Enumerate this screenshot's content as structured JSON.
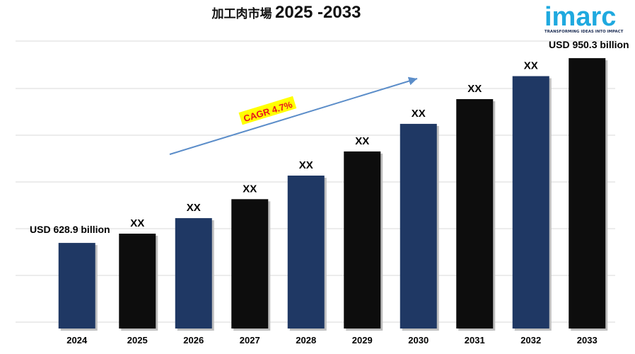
{
  "header": {
    "title_cjk": "加工肉市場",
    "title_years": "2025 -2033"
  },
  "logo": {
    "word": "imarc",
    "tagline": "TRANSFORMING IDEAS INTO IMPACT"
  },
  "annotations": {
    "cagr": "CAGR 4.7%"
  },
  "chart_data": {
    "type": "bar",
    "categories": [
      "2024",
      "2025",
      "2026",
      "2027",
      "2028",
      "2029",
      "2030",
      "2031",
      "2032",
      "2033"
    ],
    "values": [
      628.9,
      645,
      672,
      705,
      746,
      788,
      836,
      879,
      919,
      950.3
    ],
    "data_labels": [
      "USD 628.9 billion",
      "XX",
      "XX",
      "XX",
      "XX",
      "XX",
      "XX",
      "XX",
      "XX",
      "USD 950.3 billion"
    ],
    "bar_colors": [
      "#1f3864",
      "#0d0d0d",
      "#1f3864",
      "#0d0d0d",
      "#1f3864",
      "#0d0d0d",
      "#1f3864",
      "#0d0d0d",
      "#1f3864",
      "#0d0d0d"
    ],
    "ylim": [
      480,
      980
    ],
    "grid": true,
    "xlabel": "",
    "ylabel": "",
    "colors": {
      "navy": "#1f3864",
      "black": "#0d0d0d",
      "arrow": "#5b8dc9",
      "cagr_bg": "#ffff00",
      "cagr_text": "#e8141c"
    }
  }
}
